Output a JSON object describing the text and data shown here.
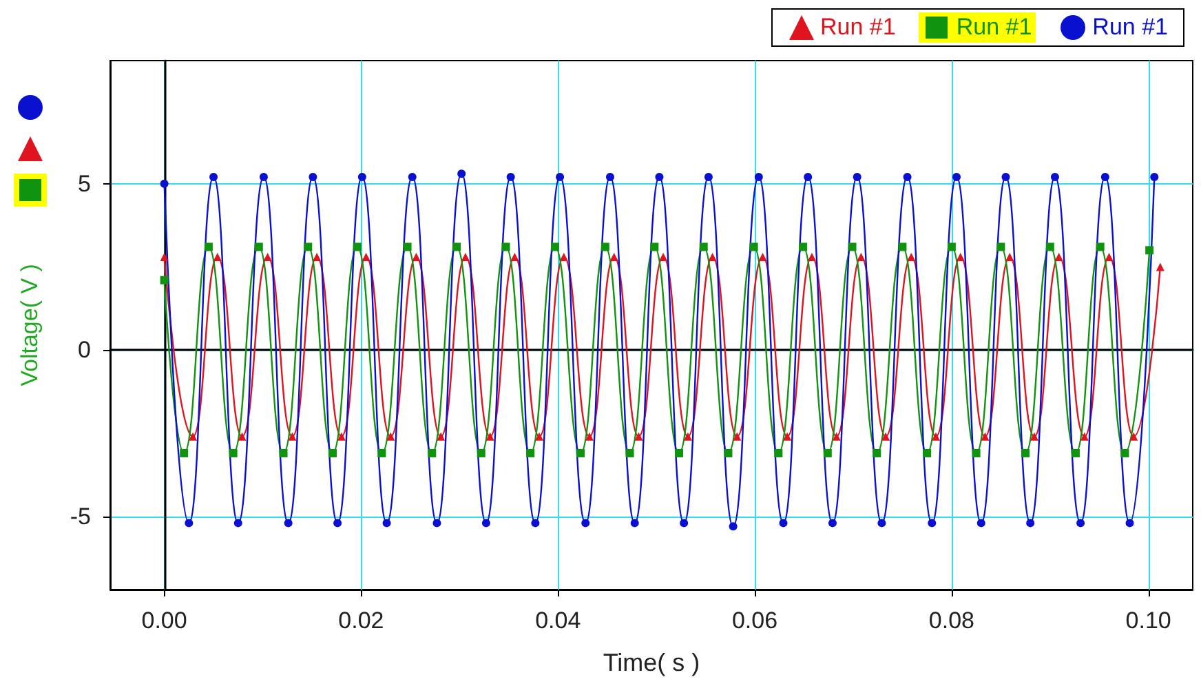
{
  "chart_data": {
    "type": "line",
    "xlabel": "Time( s )",
    "ylabel": "Voltage( V )",
    "xlim": [
      -0.0055,
      0.1045
    ],
    "ylim": [
      -7.2,
      8.7
    ],
    "xticks": [
      {
        "value": 0,
        "label": "0.00"
      },
      {
        "value": 0.02,
        "label": "0.02"
      },
      {
        "value": 0.04,
        "label": "0.04"
      },
      {
        "value": 0.06,
        "label": "0.06"
      },
      {
        "value": 0.08,
        "label": "0.08"
      },
      {
        "value": 0.1,
        "label": "0.10"
      }
    ],
    "yticks": [
      -5,
      0,
      5
    ],
    "grid": true,
    "legend": "top right",
    "line_style": "solid",
    "series": [
      {
        "name": "Run #1",
        "color": "#e0141e",
        "marker": "triangle",
        "x": [
          0,
          0.0029,
          0.0054,
          0.0079,
          0.0105,
          0.013,
          0.0155,
          0.018,
          0.0205,
          0.023,
          0.0256,
          0.0281,
          0.0306,
          0.0331,
          0.0356,
          0.0381,
          0.0406,
          0.0432,
          0.0457,
          0.0482,
          0.0507,
          0.0532,
          0.0557,
          0.0582,
          0.0608,
          0.0633,
          0.0658,
          0.0683,
          0.0708,
          0.0733,
          0.0759,
          0.0784,
          0.0809,
          0.0834,
          0.0859,
          0.0884,
          0.0909,
          0.0935,
          0.096,
          0.0985,
          0.1012
        ],
        "values": [
          2.8,
          -2.6,
          2.8,
          -2.6,
          2.8,
          -2.6,
          2.8,
          -2.6,
          2.8,
          -2.6,
          2.8,
          -2.6,
          2.8,
          -2.6,
          2.8,
          -2.6,
          2.8,
          -2.6,
          2.8,
          -2.6,
          2.8,
          -2.6,
          2.8,
          -2.6,
          2.8,
          -2.6,
          2.8,
          -2.6,
          2.8,
          -2.6,
          2.8,
          -2.6,
          2.8,
          -2.6,
          2.8,
          -2.6,
          2.8,
          -2.6,
          2.8,
          -2.6,
          2.5
        ]
      },
      {
        "name": "Run #1",
        "color": "#109410",
        "marker": "square",
        "x": [
          0,
          0.002,
          0.0045,
          0.007,
          0.0096,
          0.0121,
          0.0146,
          0.0171,
          0.0196,
          0.0221,
          0.0247,
          0.0272,
          0.0297,
          0.0322,
          0.0347,
          0.0372,
          0.0397,
          0.0423,
          0.0448,
          0.0473,
          0.0498,
          0.0523,
          0.0548,
          0.0573,
          0.0599,
          0.0624,
          0.0649,
          0.0674,
          0.0699,
          0.0724,
          0.075,
          0.0775,
          0.08,
          0.0825,
          0.085,
          0.0875,
          0.09,
          0.0926,
          0.0951,
          0.0976,
          0.1001
        ],
        "values": [
          2.1,
          -3.1,
          3.1,
          -3.1,
          3.1,
          -3.1,
          3.1,
          -3.1,
          3.1,
          -3.1,
          3.1,
          -3.1,
          3.1,
          -3.1,
          3.1,
          -3.1,
          3.1,
          -3.1,
          3.1,
          -3.1,
          3.1,
          -3.1,
          3.1,
          -3.1,
          3.1,
          -3.1,
          3.1,
          -3.1,
          3.1,
          -3.1,
          3.1,
          -3.1,
          3.1,
          -3.1,
          3.1,
          -3.1,
          3.1,
          -3.1,
          3.1,
          -3.1,
          3.0
        ]
      },
      {
        "name": "Run #1",
        "color": "#0a10d0",
        "marker": "circle",
        "x": [
          0,
          0.0025,
          0.005,
          0.0075,
          0.0101,
          0.0126,
          0.0151,
          0.0176,
          0.0201,
          0.0226,
          0.0252,
          0.0277,
          0.0302,
          0.0327,
          0.0352,
          0.0377,
          0.0402,
          0.0428,
          0.0453,
          0.0478,
          0.0503,
          0.0528,
          0.0553,
          0.0578,
          0.0604,
          0.0629,
          0.0654,
          0.0679,
          0.0704,
          0.0729,
          0.0755,
          0.078,
          0.0805,
          0.083,
          0.0855,
          0.088,
          0.0905,
          0.0931,
          0.0956,
          0.0981,
          0.1006
        ],
        "values": [
          5.0,
          -5.2,
          5.2,
          -5.2,
          5.2,
          -5.2,
          5.2,
          -5.2,
          5.2,
          -5.2,
          5.2,
          -5.2,
          5.3,
          -5.2,
          5.2,
          -5.2,
          5.2,
          -5.2,
          5.2,
          -5.2,
          5.2,
          -5.2,
          5.2,
          -5.3,
          5.2,
          -5.2,
          5.2,
          -5.2,
          5.2,
          -5.2,
          5.2,
          -5.2,
          5.2,
          -5.2,
          5.2,
          -5.2,
          5.2,
          -5.2,
          5.2,
          -5.2,
          5.2
        ]
      }
    ]
  }
}
